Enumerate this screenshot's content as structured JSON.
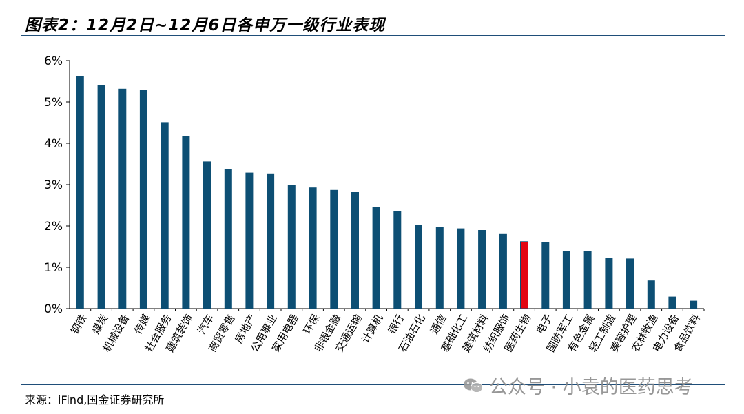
{
  "header": {
    "title": "图表2：12月2日~12月6日各申万一级行业表现"
  },
  "footer": {
    "source": "来源：iFind,国金证券研究所"
  },
  "watermark": {
    "text": "公众号 · 小袁的医药思考",
    "icon": "wechat-icon"
  },
  "colors": {
    "bar": "#0d4f74",
    "highlight": "#e30613",
    "axis": "#000000"
  },
  "chart_data": {
    "type": "bar",
    "title": "图表2：12月2日~12月6日各申万一级行业表现",
    "xlabel": "",
    "ylabel": "",
    "ylim": [
      0,
      6
    ],
    "yticks": [
      "0%",
      "1%",
      "2%",
      "3%",
      "4%",
      "5%",
      "6%"
    ],
    "grid": false,
    "categories": [
      "钢铁",
      "煤炭",
      "机械设备",
      "传媒",
      "社会服务",
      "建筑装饰",
      "汽车",
      "商贸零售",
      "房地产",
      "公用事业",
      "家用电器",
      "环保",
      "非银金融",
      "交通运输",
      "计算机",
      "银行",
      "石油石化",
      "通信",
      "基础化工",
      "建筑材料",
      "纺织服饰",
      "医药生物",
      "电子",
      "国防军工",
      "有色金属",
      "轻工制造",
      "美容护理",
      "农林牧渔",
      "电力设备",
      "食品饮料"
    ],
    "values": [
      5.62,
      5.4,
      5.32,
      5.29,
      4.51,
      4.18,
      3.56,
      3.38,
      3.29,
      3.27,
      2.99,
      2.93,
      2.87,
      2.83,
      2.46,
      2.35,
      2.03,
      1.97,
      1.94,
      1.9,
      1.82,
      1.62,
      1.61,
      1.4,
      1.4,
      1.23,
      1.21,
      0.68,
      0.29,
      0.19
    ],
    "highlight_category": "医药生物"
  }
}
